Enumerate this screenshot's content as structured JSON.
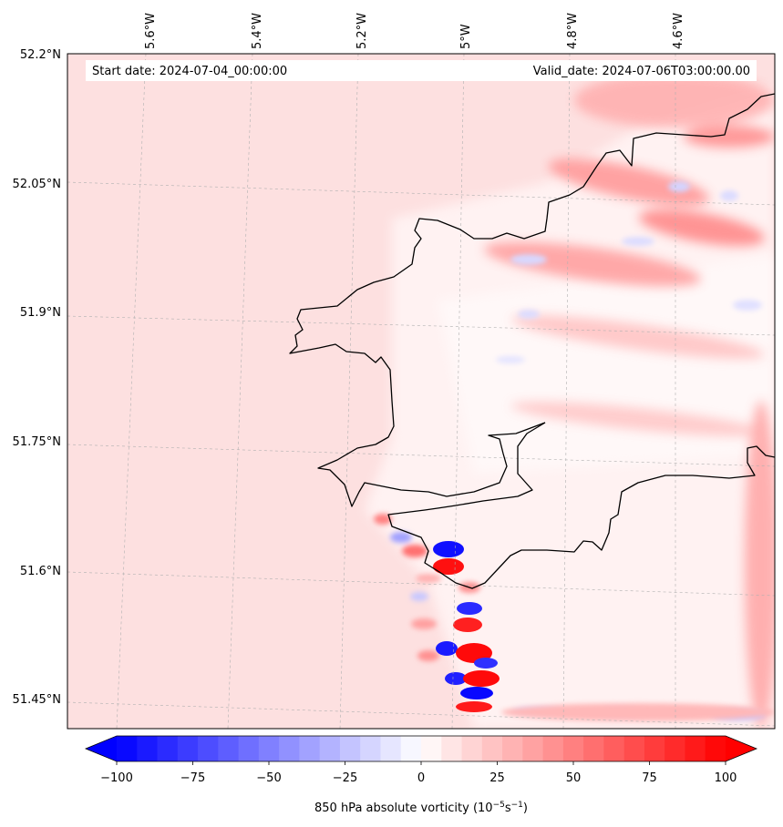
{
  "header": {
    "start_date": "Start date: 2024-07-04_00:00:00",
    "valid_date": "Valid_date: 2024-07-06T03:00:00.00"
  },
  "lon_labels": [
    "5.6°W",
    "5.4°W",
    "5.2°W",
    "5°W",
    "4.8°W",
    "4.6°W"
  ],
  "lat_labels": [
    "52.2°N",
    "52.05°N",
    "51.9°N",
    "51.75°N",
    "51.6°N",
    "51.45°N"
  ],
  "colorbar": {
    "title": "850 hPa absolute vorticity (10",
    "unit_exp1": "−5",
    "unit_mid": "s",
    "unit_exp2": "−1",
    "unit_close": ")",
    "ticks": [
      "−100",
      "−75",
      "−50",
      "−25",
      "0",
      "25",
      "50",
      "75",
      "100"
    ],
    "min": -100,
    "max": 100,
    "levels": 30,
    "low_color": "#0000ff",
    "high_color": "#ff0000"
  },
  "colors": {
    "background_field": "#fde0e0",
    "coastline": "#000000",
    "grid": "#b0b0b0"
  }
}
